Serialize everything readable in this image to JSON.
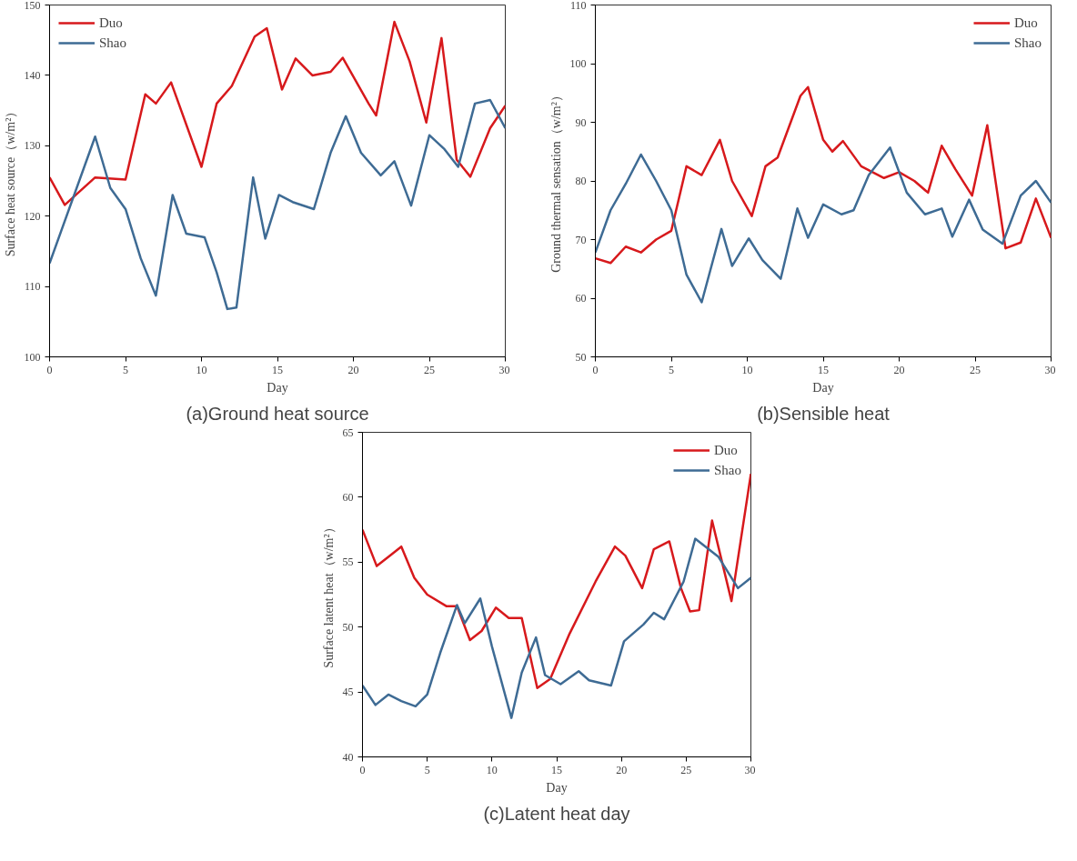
{
  "chart_data": [
    {
      "type": "line",
      "xlabel": "Day",
      "ylabel": "Surface heat source（w/m²）",
      "annotations": [
        "(a)Ground heat source"
      ],
      "xlim": [
        0,
        30
      ],
      "ylim": [
        100,
        150
      ],
      "xticks": [
        0,
        5,
        10,
        15,
        20,
        25,
        30
      ],
      "yticks": [
        100,
        110,
        120,
        130,
        140,
        150
      ],
      "grid": false,
      "legend": "top left",
      "series": [
        {
          "name": "Duo",
          "color": "#d7191c",
          "x": [
            0,
            1,
            3,
            5,
            6.3,
            7,
            8,
            10,
            11,
            12,
            13.5,
            14.3,
            15.3,
            16.2,
            17.3,
            18.5,
            19.3,
            21,
            21.5,
            22.7,
            23.7,
            24.8,
            25.8,
            26.8,
            27.7,
            29,
            30
          ],
          "values": [
            125.5,
            121.6,
            125.5,
            125.2,
            137.3,
            136,
            139,
            127,
            136,
            138.5,
            145.5,
            146.7,
            138,
            142.4,
            140,
            140.5,
            142.5,
            136,
            134.3,
            147.6,
            142,
            133.3,
            145.3,
            128,
            125.6,
            132.5,
            135.7
          ]
        },
        {
          "name": "Shao",
          "color": "#3e6b94",
          "x": [
            0,
            3,
            4,
            5,
            6,
            7,
            8.1,
            9,
            10.2,
            11,
            11.7,
            12.3,
            13.4,
            14.2,
            15.1,
            16,
            17.4,
            18.5,
            19.5,
            20.5,
            21.8,
            22.7,
            23.8,
            25,
            26,
            26.9,
            28,
            29,
            30
          ],
          "values": [
            113.3,
            131.3,
            124,
            121,
            114,
            108.7,
            123,
            117.5,
            117,
            112,
            106.8,
            107,
            125.5,
            116.8,
            123,
            122,
            121,
            129,
            134.2,
            129,
            125.8,
            127.8,
            121.5,
            131.5,
            129.5,
            127,
            136,
            136.5,
            132.5
          ]
        }
      ]
    },
    {
      "type": "line",
      "xlabel": "Day",
      "ylabel": "Ground thermal sensation（w/m²）",
      "annotations": [
        "(b)Sensible heat"
      ],
      "xlim": [
        0,
        30
      ],
      "ylim": [
        50,
        110
      ],
      "xticks": [
        0,
        5,
        10,
        15,
        20,
        25,
        30
      ],
      "yticks": [
        50,
        60,
        70,
        80,
        90,
        100,
        110
      ],
      "grid": false,
      "legend": "top right",
      "series": [
        {
          "name": "Duo",
          "color": "#d7191c",
          "x": [
            0,
            1,
            2,
            3,
            4,
            5,
            6,
            7,
            8.2,
            9,
            10.3,
            11.2,
            12,
            13.5,
            14,
            15,
            15.6,
            16.3,
            17.5,
            19,
            20,
            21,
            21.9,
            22.8,
            23.7,
            24.8,
            25.8,
            27,
            28,
            29,
            30
          ],
          "values": [
            66.8,
            66,
            68.8,
            67.8,
            70,
            71.5,
            82.5,
            81,
            87,
            80,
            74,
            82.5,
            84,
            94.5,
            96,
            87,
            85,
            86.8,
            82.5,
            80.5,
            81.5,
            80,
            78,
            86,
            82,
            77.5,
            89.5,
            68.5,
            69.5,
            77,
            70.3
          ]
        },
        {
          "name": "Shao",
          "color": "#3e6b94",
          "x": [
            0,
            1,
            2,
            3,
            4,
            5,
            6,
            7,
            8.3,
            9,
            10.1,
            11,
            12.2,
            13.3,
            14,
            15,
            16.2,
            17,
            18,
            19.4,
            20.5,
            21.7,
            22.8,
            23.5,
            24.6,
            25.5,
            26.8,
            28,
            29,
            30
          ],
          "values": [
            67.8,
            75,
            79.5,
            84.5,
            80,
            75,
            64,
            59.3,
            71.8,
            65.5,
            70.2,
            66.5,
            63.3,
            75.3,
            70.3,
            76,
            74.3,
            75,
            81,
            85.7,
            78,
            74.3,
            75.3,
            70.5,
            76.8,
            71.7,
            69.3,
            77.5,
            80,
            76.3
          ]
        }
      ]
    },
    {
      "type": "line",
      "xlabel": "Day",
      "ylabel": "Surface latent heat（w/m²）",
      "annotations": [
        "(c)Latent heat day"
      ],
      "xlim": [
        0,
        30
      ],
      "ylim": [
        40,
        65
      ],
      "xticks": [
        0,
        5,
        10,
        15,
        20,
        25,
        30
      ],
      "yticks": [
        40,
        45,
        50,
        55,
        60,
        65
      ],
      "grid": false,
      "legend": "top right",
      "series": [
        {
          "name": "Duo",
          "color": "#d7191c",
          "x": [
            0,
            1.1,
            2,
            3,
            4,
            5,
            6.5,
            7.3,
            8.3,
            9.2,
            10.3,
            11.3,
            12.3,
            13.5,
            14.5,
            16,
            18,
            19.5,
            20.3,
            21.6,
            22.5,
            23.7,
            24.6,
            25.3,
            26,
            27,
            28.5,
            30
          ],
          "values": [
            57.5,
            54.7,
            55.4,
            56.2,
            53.8,
            52.5,
            51.6,
            51.6,
            49,
            49.7,
            51.5,
            50.7,
            50.7,
            45.3,
            46,
            49.5,
            53.5,
            56.2,
            55.5,
            53,
            56,
            56.6,
            53,
            51.2,
            51.3,
            58.2,
            52,
            61.8
          ]
        },
        {
          "name": "Shao",
          "color": "#3e6b94",
          "x": [
            0,
            1,
            2,
            3,
            4.1,
            5,
            6,
            7.3,
            7.9,
            9.1,
            10,
            11.5,
            12.3,
            13.4,
            14.1,
            15.3,
            16.7,
            17.5,
            19.2,
            20.2,
            21.7,
            22.5,
            23.3,
            24.8,
            25.7,
            27.5,
            29,
            30
          ],
          "values": [
            45.5,
            44,
            44.8,
            44.3,
            43.9,
            44.8,
            48,
            51.7,
            50.3,
            52.2,
            48.5,
            43,
            46.5,
            49.2,
            46.3,
            45.6,
            46.6,
            45.9,
            45.5,
            48.9,
            50.2,
            51.1,
            50.6,
            53.5,
            56.8,
            55.4,
            53,
            53.8
          ]
        }
      ]
    }
  ]
}
